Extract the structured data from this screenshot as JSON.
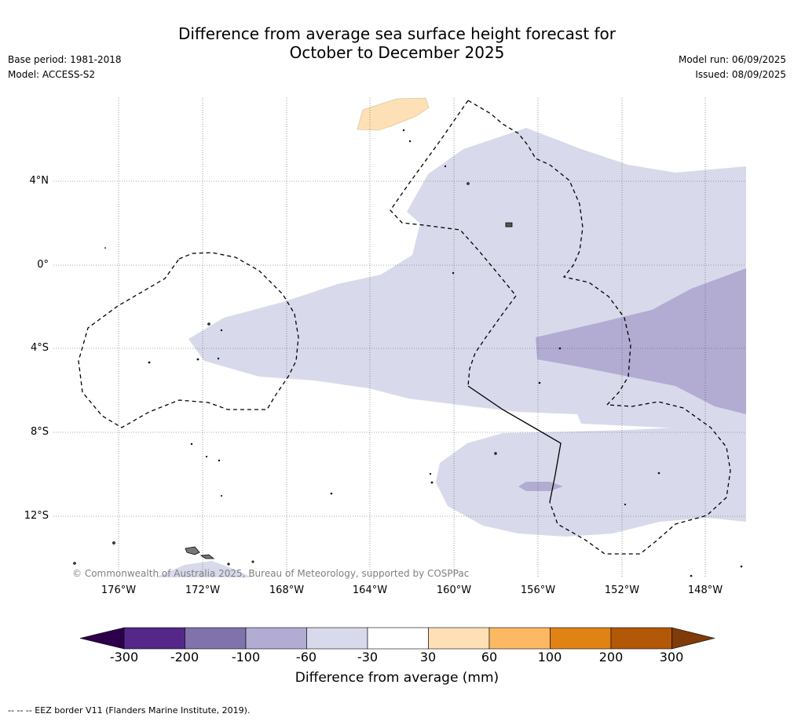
{
  "title_line1": "Difference from average sea surface height forecast for",
  "title_line2": "October to December 2025",
  "base_period": "Base period: 1981-2018",
  "model": "Model: ACCESS-S2",
  "model_run": "Model run: 06/09/2025",
  "issued": "Issued: 08/09/2025",
  "lat_labels": [
    "4°N",
    "0°",
    "4°S",
    "8°S",
    "12°S"
  ],
  "lon_labels": [
    "176°W",
    "172°W",
    "168°W",
    "164°W",
    "160°W",
    "156°W",
    "152°W",
    "148°W"
  ],
  "copyright": "© Commonwealth of Australia 2025, Bureau of Meteorology, supported by COSPPac",
  "colorbar": {
    "ticks": [
      "-300",
      "-200",
      "-100",
      "-60",
      "-30",
      "30",
      "60",
      "100",
      "200",
      "300"
    ],
    "colors": [
      "#2d004b",
      "#542788",
      "#8073ac",
      "#b2abd2",
      "#d8daeb",
      "#ffffff",
      "#fee0b6",
      "#fdb863",
      "#e08214",
      "#b35806",
      "#7f3b08"
    ],
    "title": "Difference from average (mm)"
  },
  "footnote": "--  --  -- EEZ border V11 (Flanders Marine Institute, 2019)."
}
